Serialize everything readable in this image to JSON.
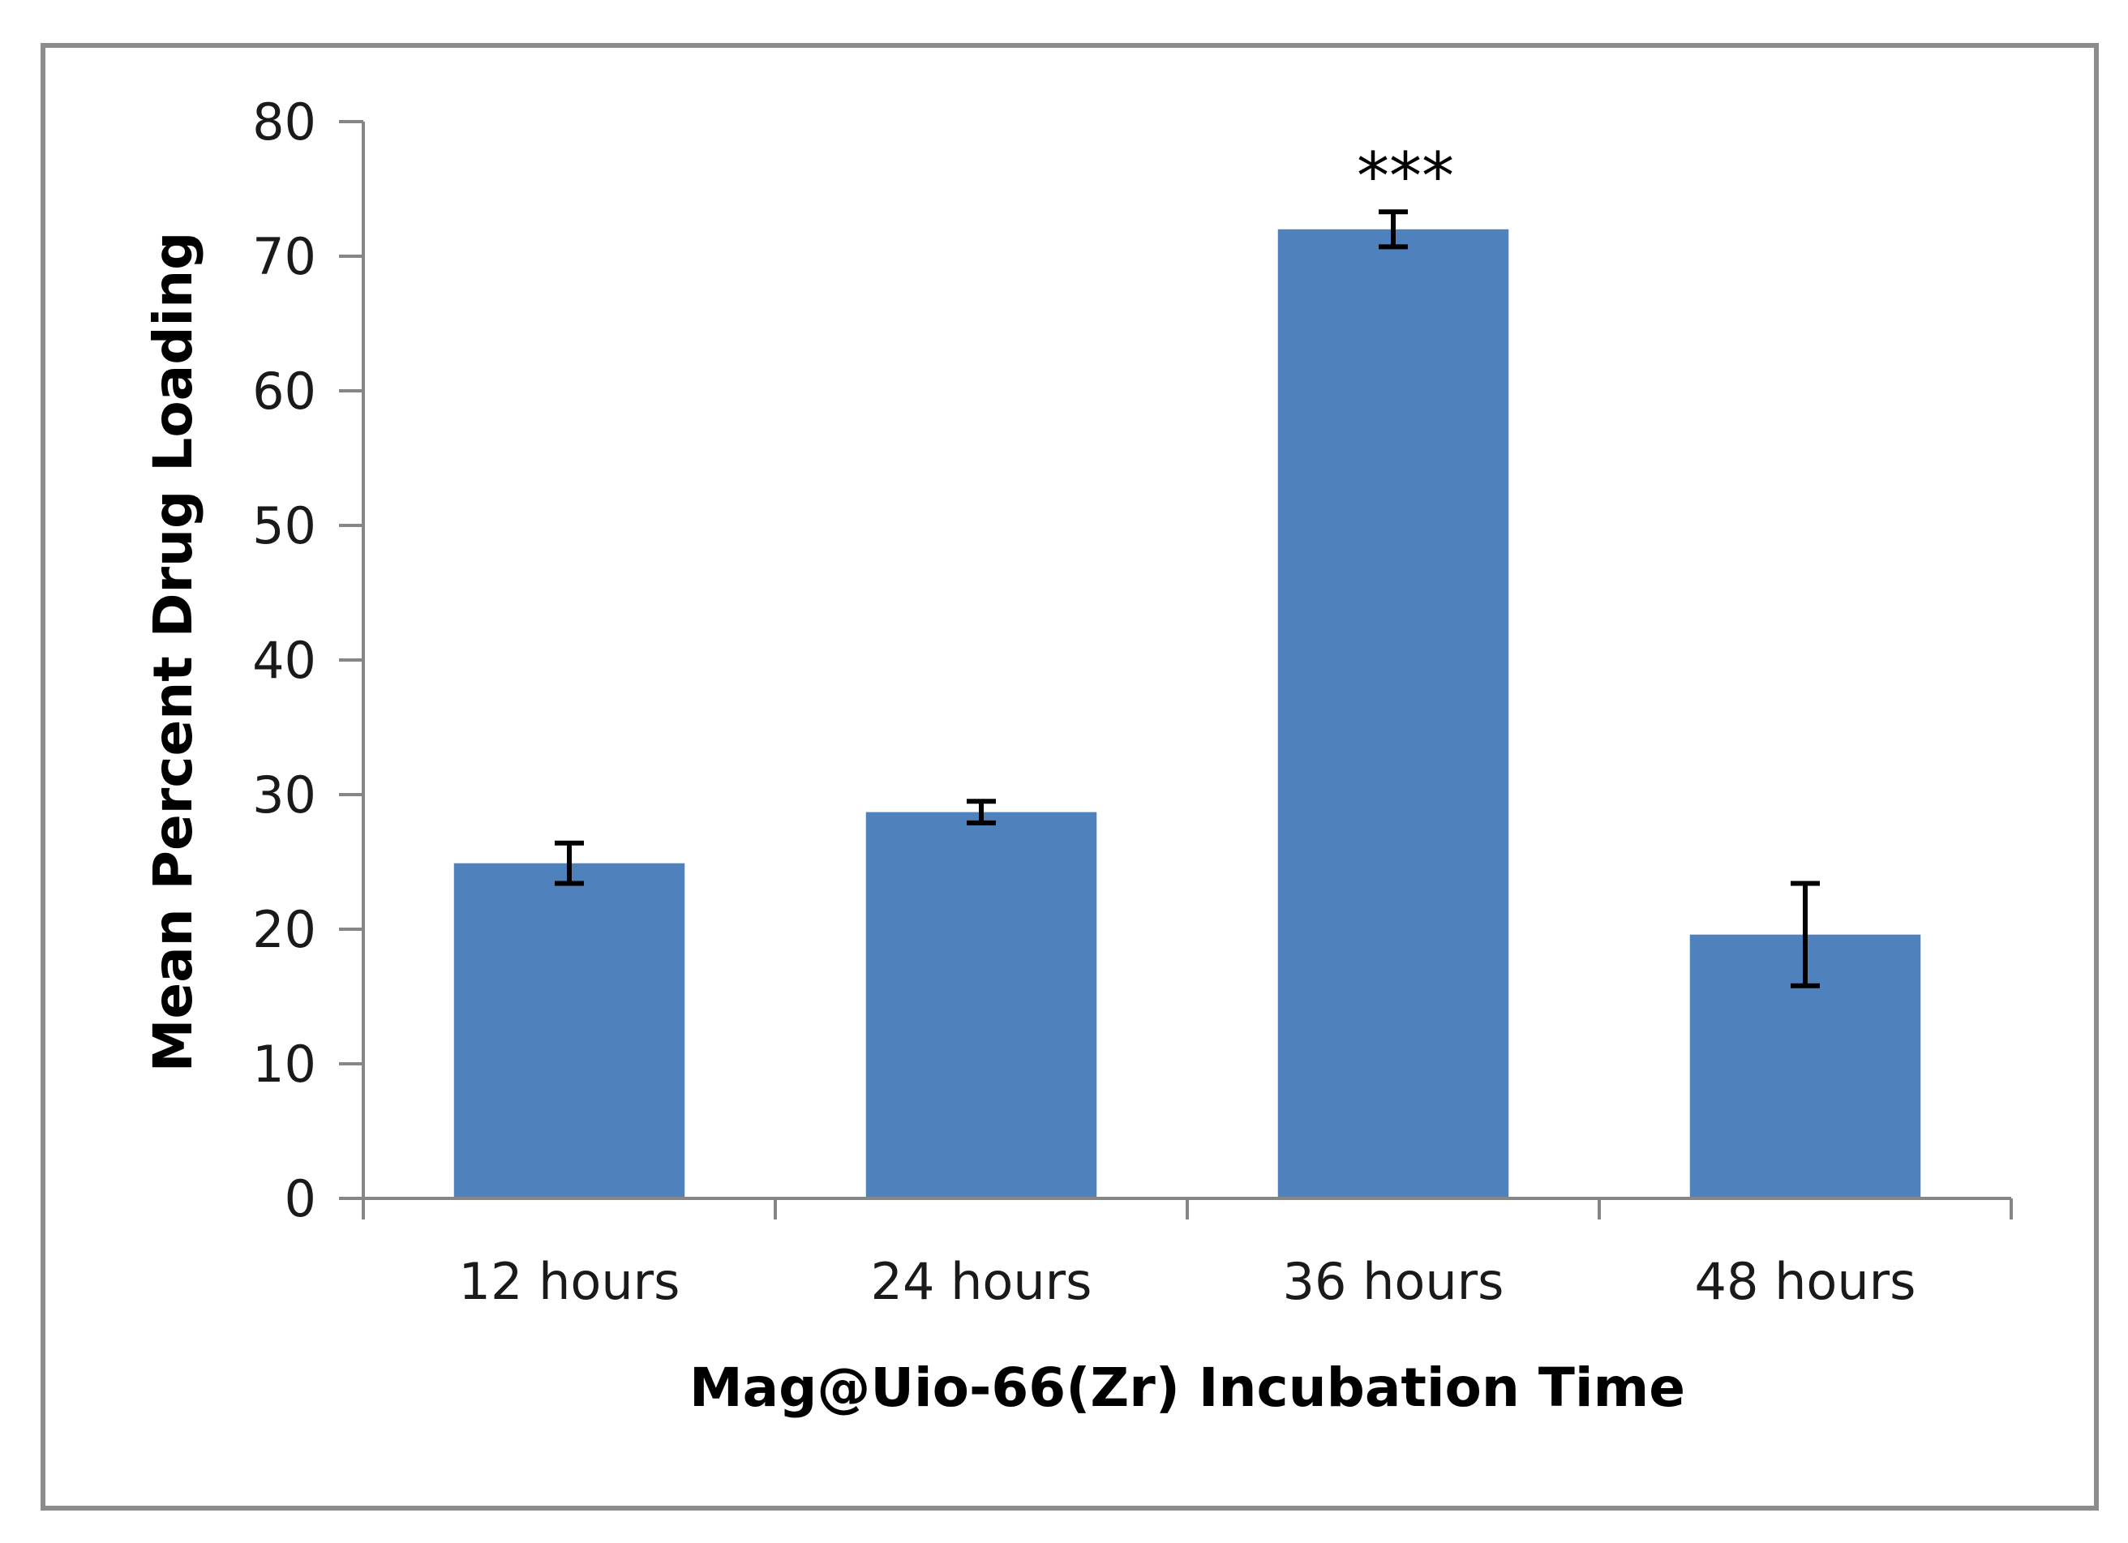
{
  "chart_data": {
    "type": "bar",
    "title": "",
    "xlabel": "Mag@Uio-66(Zr) Incubation Time",
    "ylabel": "Mean Percent Drug Loading",
    "categories": [
      "12 hours",
      "24 hours",
      "36 hours",
      "48 hours"
    ],
    "values": [
      24.9,
      28.7,
      72.0,
      19.6
    ],
    "error": [
      1.5,
      0.8,
      1.3,
      3.8
    ],
    "annotations": [
      {
        "category_index": 2,
        "text": "***"
      }
    ],
    "ylim": [
      0,
      80
    ],
    "yticks": [
      0,
      10,
      20,
      30,
      40,
      50,
      60,
      70,
      80
    ],
    "grid": false,
    "legend": "none",
    "colors": {
      "bar": "#4f81bd",
      "axis": "#868686",
      "frame": "#8c8c8c",
      "error": "#000000"
    }
  }
}
